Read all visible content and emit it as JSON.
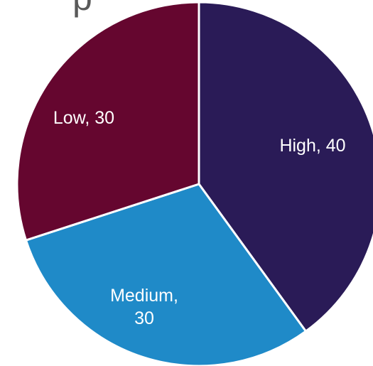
{
  "chart_data": {
    "type": "pie",
    "title": "",
    "slices": [
      {
        "label": "High",
        "value": 40,
        "color": "#2a1b57",
        "label_lines": [
          "High, 40"
        ]
      },
      {
        "label": "Medium",
        "value": 30,
        "color": "#1f8ac8",
        "label_lines": [
          "Medium,",
          "30"
        ]
      },
      {
        "label": "Low",
        "value": 30,
        "color": "#65062f",
        "label_lines": [
          "Low, 30"
        ]
      }
    ],
    "start_angle_deg": 0,
    "direction": "clockwise",
    "slice_border_color": "#ffffff",
    "legend": "none"
  }
}
